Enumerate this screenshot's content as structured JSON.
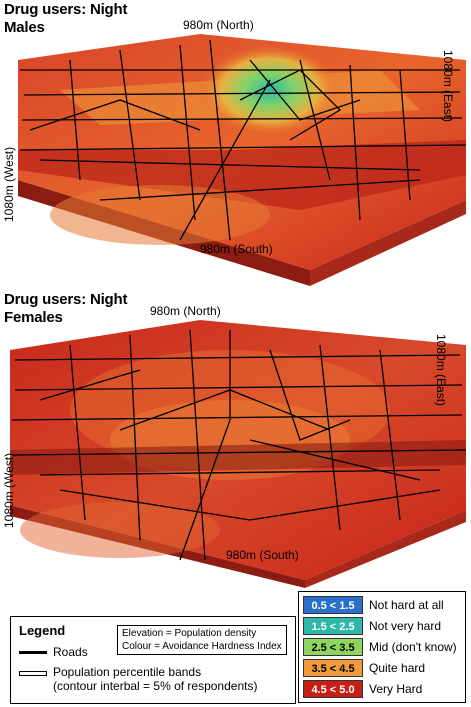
{
  "colors": {
    "very_hard": "#c8241a",
    "quite_hard": "#e8682a",
    "mid": "#7fd36a",
    "not_very_hard": "#3fc0a0",
    "not_hard": "#2f8fd6",
    "roads": "#000000"
  },
  "maps": [
    {
      "title_line1": "Drug users: Night",
      "title_line2": "Males",
      "north": "980m (North)",
      "south": "980m (South)",
      "east": "1080m (East)",
      "west": "1080m (West)",
      "has_green_hotspot": true
    },
    {
      "title_line1": "Drug users: Night",
      "title_line2": "Females",
      "north": "980m (North)",
      "south": "980m (South)",
      "east": "1080m (East)",
      "west": "1080m (West)",
      "has_green_hotspot": false
    }
  ],
  "legend": {
    "title": "Legend",
    "note_line1": "Elevation = Population density",
    "note_line2": "Colour = Avoidance Hardness Index",
    "roads_label": "Roads",
    "bands_line1": "Population percentile bands",
    "bands_line2": "(contour interbal = 5% of respondents)"
  },
  "scale": [
    {
      "range": "0.5 < 1.5",
      "label": "Not hard at all",
      "color": "#2a6fc9"
    },
    {
      "range": "1.5 < 2.5",
      "label": "Not very hard",
      "color": "#2fb7a8"
    },
    {
      "range": "2.5 < 3.5",
      "label": "Mid (don't know)",
      "color": "#8fd45f"
    },
    {
      "range": "3.5 < 4.5",
      "label": "Quite hard",
      "color": "#f09a3a"
    },
    {
      "range": "4.5 < 5.0",
      "label": "Very Hard",
      "color": "#c62016"
    }
  ]
}
